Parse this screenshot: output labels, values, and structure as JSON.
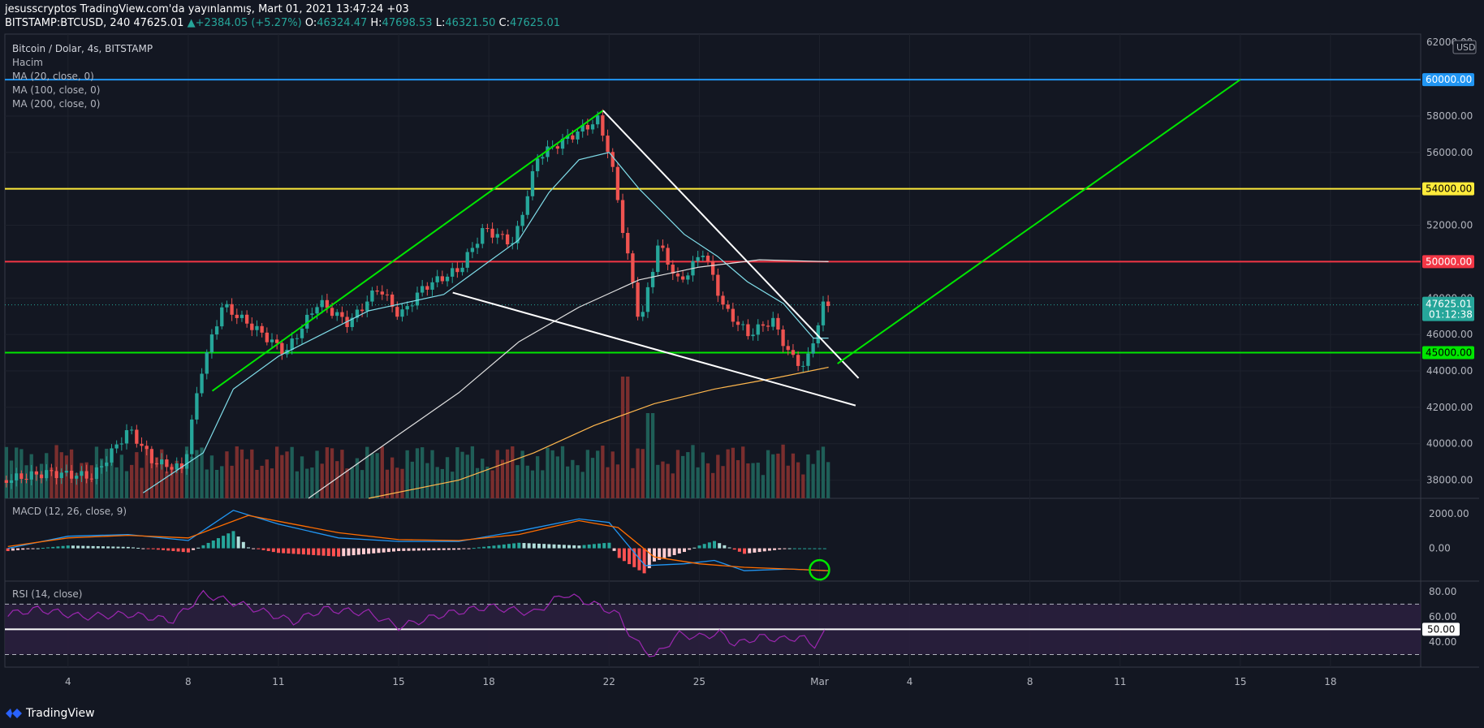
{
  "header": {
    "line1": "jesusscryptos TradingView.com'da yayınlanmış, Mart 01, 2021 13:47:24 +03",
    "symbol": "BITSTAMP:BTCUSD, 240",
    "price": "47625.01",
    "change": "+2384.05 (+5.27%)",
    "o_label": "O:",
    "o": "46324.47",
    "h_label": "H:",
    "h": "47698.53",
    "l_label": "L:",
    "l": "46321.50",
    "c_label": "C:",
    "c": "47625.01"
  },
  "legend": {
    "title": "Bitcoin / Dolar, 4s, BITSTAMP",
    "volume": "Hacim",
    "ma20": "MA (20, close, 0)",
    "ma100": "MA (100, close, 0)",
    "ma200": "MA (200, close, 0)"
  },
  "currency": "USD",
  "top_tick": "62000.00",
  "macd_title": "MACD (12, 26, close, 9)",
  "rsi_title": "RSI (14, close)",
  "brand": "TradingView",
  "colors": {
    "up": "#26a69a",
    "down": "#ef5350",
    "blue": "#2196f3",
    "yellow": "#ffeb3b",
    "red": "#f23645",
    "green": "#00e600",
    "ma20": "#80deea",
    "ma100": "#e0e0e0",
    "ma200": "#ffb74d",
    "rsi": "#9c27b0",
    "macd": "#2196f3",
    "signal": "#ff6d00"
  },
  "chart_data": [
    {
      "type": "candlestick",
      "title": "Bitcoin / Dolar, 4s, BITSTAMP",
      "ylim": [
        37000,
        62500
      ],
      "y_ticks": [
        38000,
        40000,
        42000,
        44000,
        46000,
        48000,
        52000,
        56000,
        58000
      ],
      "x_ticks": [
        {
          "label": "4",
          "d": 4
        },
        {
          "label": "8",
          "d": 8
        },
        {
          "label": "11",
          "d": 11
        },
        {
          "label": "15",
          "d": 15
        },
        {
          "label": "18",
          "d": 18
        },
        {
          "label": "22",
          "d": 22
        },
        {
          "label": "25",
          "d": 25
        },
        {
          "label": "Mar",
          "d": 29
        },
        {
          "label": "4",
          "d": 32
        },
        {
          "label": "8",
          "d": 36
        },
        {
          "label": "11",
          "d": 39
        },
        {
          "label": "15",
          "d": 43
        },
        {
          "label": "18",
          "d": 46
        }
      ],
      "x_range_days": [
        1.9,
        49
      ],
      "horizontal_levels": [
        {
          "value": 60000,
          "label": "60000.00",
          "color": "#2196f3"
        },
        {
          "value": 54000,
          "label": "54000.00",
          "color": "#ffeb3b"
        },
        {
          "value": 50000,
          "label": "50000.00",
          "color": "#f23645"
        },
        {
          "value": 45000,
          "label": "45000.00",
          "color": "#00e600"
        }
      ],
      "last_price": {
        "value": 47625.01,
        "label": "47625.01",
        "countdown": "01:12:38"
      },
      "price_path": [
        {
          "d": 2.0,
          "p": 38000
        },
        {
          "d": 3.5,
          "p": 38400
        },
        {
          "d": 5.0,
          "p": 38200
        },
        {
          "d": 6.2,
          "p": 40800
        },
        {
          "d": 7.0,
          "p": 39000
        },
        {
          "d": 8.0,
          "p": 38600
        },
        {
          "d": 8.6,
          "p": 44000
        },
        {
          "d": 9.3,
          "p": 47600
        },
        {
          "d": 10.5,
          "p": 46200
        },
        {
          "d": 11.4,
          "p": 45000
        },
        {
          "d": 12.5,
          "p": 47800
        },
        {
          "d": 13.5,
          "p": 46600
        },
        {
          "d": 14.5,
          "p": 48600
        },
        {
          "d": 15.2,
          "p": 47000
        },
        {
          "d": 16.0,
          "p": 48600
        },
        {
          "d": 17.2,
          "p": 49600
        },
        {
          "d": 18.0,
          "p": 51800
        },
        {
          "d": 19.0,
          "p": 51000
        },
        {
          "d": 19.8,
          "p": 55800
        },
        {
          "d": 20.8,
          "p": 56800
        },
        {
          "d": 21.8,
          "p": 57800
        },
        {
          "d": 22.2,
          "p": 55800
        },
        {
          "d": 22.6,
          "p": 52000
        },
        {
          "d": 23.2,
          "p": 46500
        },
        {
          "d": 23.8,
          "p": 51000
        },
        {
          "d": 24.5,
          "p": 48800
        },
        {
          "d": 25.3,
          "p": 50600
        },
        {
          "d": 26.0,
          "p": 47400
        },
        {
          "d": 26.8,
          "p": 46000
        },
        {
          "d": 27.6,
          "p": 46800
        },
        {
          "d": 28.2,
          "p": 44800
        },
        {
          "d": 28.7,
          "p": 44200
        },
        {
          "d": 29.1,
          "p": 46500
        },
        {
          "d": 29.3,
          "p": 47625
        }
      ],
      "volume_spikes": [
        {
          "d": 22.5,
          "v": 1.0
        },
        {
          "d": 23.3,
          "v": 0.7
        }
      ],
      "series": [
        {
          "name": "MA (20, close, 0)",
          "color": "#80deea",
          "points": [
            {
              "d": 6.5,
              "p": 37300
            },
            {
              "d": 8.5,
              "p": 39500
            },
            {
              "d": 9.5,
              "p": 43000
            },
            {
              "d": 11,
              "p": 44800
            },
            {
              "d": 14,
              "p": 47300
            },
            {
              "d": 16.5,
              "p": 48200
            },
            {
              "d": 18,
              "p": 50000
            },
            {
              "d": 19,
              "p": 51200
            },
            {
              "d": 20,
              "p": 53800
            },
            {
              "d": 21,
              "p": 55600
            },
            {
              "d": 22,
              "p": 56000
            },
            {
              "d": 23,
              "p": 54000
            },
            {
              "d": 24.5,
              "p": 51500
            },
            {
              "d": 25.6,
              "p": 50300
            },
            {
              "d": 26.6,
              "p": 48900
            },
            {
              "d": 27.8,
              "p": 47700
            },
            {
              "d": 28.8,
              "p": 45800
            },
            {
              "d": 29.3,
              "p": 45800
            }
          ]
        },
        {
          "name": "MA (100, close, 0)",
          "color": "#e0e0e0",
          "points": [
            {
              "d": 12,
              "p": 37000
            },
            {
              "d": 15,
              "p": 40500
            },
            {
              "d": 17,
              "p": 42800
            },
            {
              "d": 19,
              "p": 45600
            },
            {
              "d": 21,
              "p": 47500
            },
            {
              "d": 23,
              "p": 49000
            },
            {
              "d": 25,
              "p": 49700
            },
            {
              "d": 27,
              "p": 50100
            },
            {
              "d": 29.3,
              "p": 50000
            }
          ]
        },
        {
          "name": "MA (200, close, 0)",
          "color": "#ffb74d",
          "points": [
            {
              "d": 14,
              "p": 37000
            },
            {
              "d": 17,
              "p": 38000
            },
            {
              "d": 19.5,
              "p": 39500
            },
            {
              "d": 21.5,
              "p": 41000
            },
            {
              "d": 23.5,
              "p": 42200
            },
            {
              "d": 25.5,
              "p": 43000
            },
            {
              "d": 27.5,
              "p": 43600
            },
            {
              "d": 29.3,
              "p": 44200
            }
          ]
        }
      ],
      "trendlines": [
        {
          "color": "#00e600",
          "points": [
            {
              "d": 8.8,
              "p": 42900
            },
            {
              "d": 21.8,
              "p": 58300
            }
          ]
        },
        {
          "color": "#ffffff",
          "points": [
            {
              "d": 21.8,
              "p": 58300
            },
            {
              "d": 30.3,
              "p": 43600
            }
          ]
        },
        {
          "color": "#ffffff",
          "points": [
            {
              "d": 16.8,
              "p": 48300
            },
            {
              "d": 30.2,
              "p": 42100
            }
          ]
        },
        {
          "color": "#00e600",
          "points": [
            {
              "d": 29.6,
              "p": 44400
            },
            {
              "d": 43.0,
              "p": 60000
            }
          ]
        }
      ]
    },
    {
      "type": "line",
      "title": "MACD (12, 26, close, 9)",
      "ylim": [
        -1900,
        2800
      ],
      "y_ticks": [
        2000,
        0
      ],
      "series": [
        {
          "name": "MACD",
          "color": "#2196f3",
          "points": [
            {
              "d": 2,
              "p": 0
            },
            {
              "d": 4,
              "p": 700
            },
            {
              "d": 6,
              "p": 800
            },
            {
              "d": 8,
              "p": 450
            },
            {
              "d": 9.5,
              "p": 2200
            },
            {
              "d": 11,
              "p": 1400
            },
            {
              "d": 13,
              "p": 600
            },
            {
              "d": 15,
              "p": 400
            },
            {
              "d": 17,
              "p": 400
            },
            {
              "d": 19,
              "p": 1000
            },
            {
              "d": 21,
              "p": 1700
            },
            {
              "d": 22,
              "p": 1500
            },
            {
              "d": 23.2,
              "p": -1000
            },
            {
              "d": 24.5,
              "p": -900
            },
            {
              "d": 25.5,
              "p": -700
            },
            {
              "d": 26.5,
              "p": -1300
            },
            {
              "d": 28,
              "p": -1200
            },
            {
              "d": 29.3,
              "p": -1300
            }
          ]
        },
        {
          "name": "Signal",
          "color": "#ff6d00",
          "points": [
            {
              "d": 2,
              "p": 100
            },
            {
              "d": 4,
              "p": 600
            },
            {
              "d": 6,
              "p": 750
            },
            {
              "d": 8,
              "p": 600
            },
            {
              "d": 10,
              "p": 1900
            },
            {
              "d": 11.5,
              "p": 1400
            },
            {
              "d": 13,
              "p": 900
            },
            {
              "d": 15,
              "p": 500
            },
            {
              "d": 17,
              "p": 450
            },
            {
              "d": 19,
              "p": 800
            },
            {
              "d": 21,
              "p": 1600
            },
            {
              "d": 22.3,
              "p": 1200
            },
            {
              "d": 23.5,
              "p": -500
            },
            {
              "d": 25,
              "p": -900
            },
            {
              "d": 26.5,
              "p": -1100
            },
            {
              "d": 28,
              "p": -1200
            },
            {
              "d": 29.3,
              "p": -1300
            }
          ]
        }
      ]
    },
    {
      "type": "line",
      "title": "RSI (14, close)",
      "ylim": [
        20,
        87
      ],
      "y_ticks": [
        80,
        60,
        40
      ],
      "levels": [
        {
          "value": 70,
          "style": "dashed"
        },
        {
          "value": 30,
          "style": "dashed"
        },
        {
          "value": 50,
          "label": "50.00"
        }
      ],
      "series": [
        {
          "name": "RSI",
          "color": "#9c27b0",
          "points": [
            {
              "d": 2,
              "p": 62
            },
            {
              "d": 3,
              "p": 66
            },
            {
              "d": 4.5,
              "p": 60
            },
            {
              "d": 6,
              "p": 62
            },
            {
              "d": 7.5,
              "p": 57
            },
            {
              "d": 8.5,
              "p": 78
            },
            {
              "d": 10,
              "p": 68
            },
            {
              "d": 11.5,
              "p": 56
            },
            {
              "d": 12.5,
              "p": 66
            },
            {
              "d": 14,
              "p": 63
            },
            {
              "d": 15,
              "p": 52
            },
            {
              "d": 16.5,
              "p": 62
            },
            {
              "d": 18,
              "p": 68
            },
            {
              "d": 19.5,
              "p": 63
            },
            {
              "d": 20.5,
              "p": 78
            },
            {
              "d": 21.5,
              "p": 70
            },
            {
              "d": 22.3,
              "p": 62
            },
            {
              "d": 22.8,
              "p": 42
            },
            {
              "d": 23.5,
              "p": 28
            },
            {
              "d": 24.3,
              "p": 46
            },
            {
              "d": 25,
              "p": 44
            },
            {
              "d": 25.7,
              "p": 47
            },
            {
              "d": 26.2,
              "p": 38
            },
            {
              "d": 27,
              "p": 44
            },
            {
              "d": 27.8,
              "p": 42
            },
            {
              "d": 28.4,
              "p": 44
            },
            {
              "d": 28.8,
              "p": 37
            },
            {
              "d": 29.3,
              "p": 50
            }
          ]
        }
      ]
    }
  ]
}
